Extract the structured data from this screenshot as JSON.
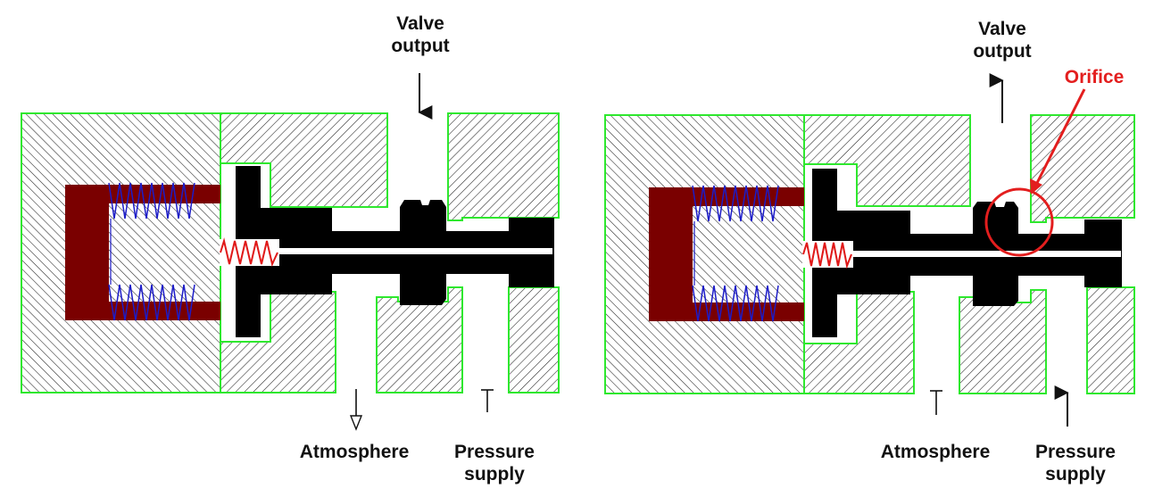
{
  "colors": {
    "hatch_outline": "#2ee82e",
    "spool": "#000000",
    "diaphragm": "#7a0000",
    "spring_blue": "#1c1cc8",
    "spring_red": "#e01818",
    "orifice": "#e31e1e",
    "hatch_line": "#222222"
  },
  "left_diagram": {
    "valve_output": [
      "Valve",
      "output"
    ],
    "atmosphere": "Atmosphere",
    "pressure_supply": [
      "Pressure",
      "supply"
    ]
  },
  "right_diagram": {
    "valve_output": [
      "Valve",
      "output"
    ],
    "orifice": "Orifice",
    "atmosphere": "Atmosphere",
    "pressure_supply": [
      "Pressure",
      "supply"
    ]
  }
}
